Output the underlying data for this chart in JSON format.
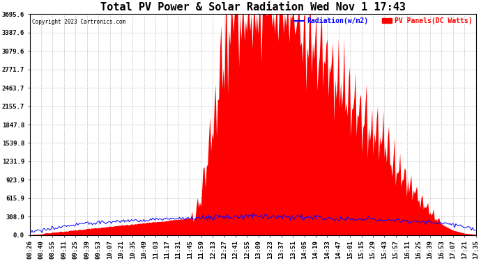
{
  "title": "Total PV Power & Solar Radiation Wed Nov 1 17:43",
  "copyright_text": "Copyright 2023 Cartronics.com",
  "legend_radiation": "Radiation(w/m2)",
  "legend_pv": "PV Panels(DC Watts)",
  "radiation_color": "blue",
  "pv_color": "red",
  "background_color": "#ffffff",
  "grid_color": "#aaaaaa",
  "yticks": [
    0.0,
    308.0,
    615.9,
    923.9,
    1231.9,
    1539.8,
    1847.8,
    2155.7,
    2463.7,
    2771.7,
    3079.6,
    3387.6,
    3695.6
  ],
  "ymax": 3695.6,
  "xtick_labels": [
    "08:26",
    "08:40",
    "08:55",
    "09:11",
    "09:25",
    "09:39",
    "09:53",
    "10:07",
    "10:21",
    "10:35",
    "10:49",
    "11:03",
    "11:17",
    "11:31",
    "11:45",
    "11:59",
    "12:13",
    "12:27",
    "12:41",
    "12:55",
    "13:09",
    "13:23",
    "13:37",
    "13:51",
    "14:05",
    "14:19",
    "14:33",
    "14:47",
    "15:01",
    "15:15",
    "15:29",
    "15:43",
    "15:57",
    "16:11",
    "16:25",
    "16:39",
    "16:53",
    "17:07",
    "17:21",
    "17:35"
  ],
  "title_fontsize": 11,
  "tick_fontsize": 6.5,
  "label_fontsize": 8,
  "n_hf": 400
}
